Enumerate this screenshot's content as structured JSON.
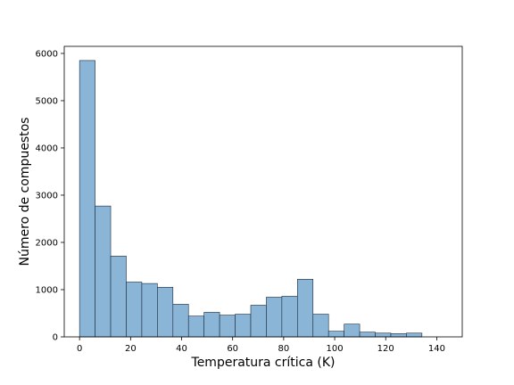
{
  "chart_data": {
    "type": "bar",
    "subtype": "histogram",
    "title": "",
    "xlabel": "Temperatura crítica (K)",
    "ylabel": "Número de compuestos",
    "xlim": [
      -6,
      150
    ],
    "ylim": [
      0,
      6150
    ],
    "xticks": [
      0,
      20,
      40,
      60,
      80,
      100,
      120,
      140
    ],
    "yticks": [
      0,
      1000,
      2000,
      3000,
      4000,
      5000,
      6000
    ],
    "bin_edges": [
      0,
      6.1,
      12.2,
      18.3,
      24.4,
      30.5,
      36.6,
      42.7,
      48.8,
      54.9,
      61.0,
      67.1,
      73.2,
      79.3,
      85.4,
      91.5,
      97.6,
      103.7,
      109.8,
      115.9,
      122.0,
      128.1,
      134.2
    ],
    "counts": [
      5850,
      2770,
      1710,
      1160,
      1130,
      1050,
      690,
      440,
      520,
      460,
      480,
      670,
      840,
      860,
      1220,
      480,
      120,
      270,
      100,
      80,
      70,
      80
    ],
    "grid": false,
    "legend": "none",
    "colors": {
      "bar_fill": "#8ab5d7",
      "bar_edge": "#1a2a3a",
      "axis": "#000000"
    }
  }
}
